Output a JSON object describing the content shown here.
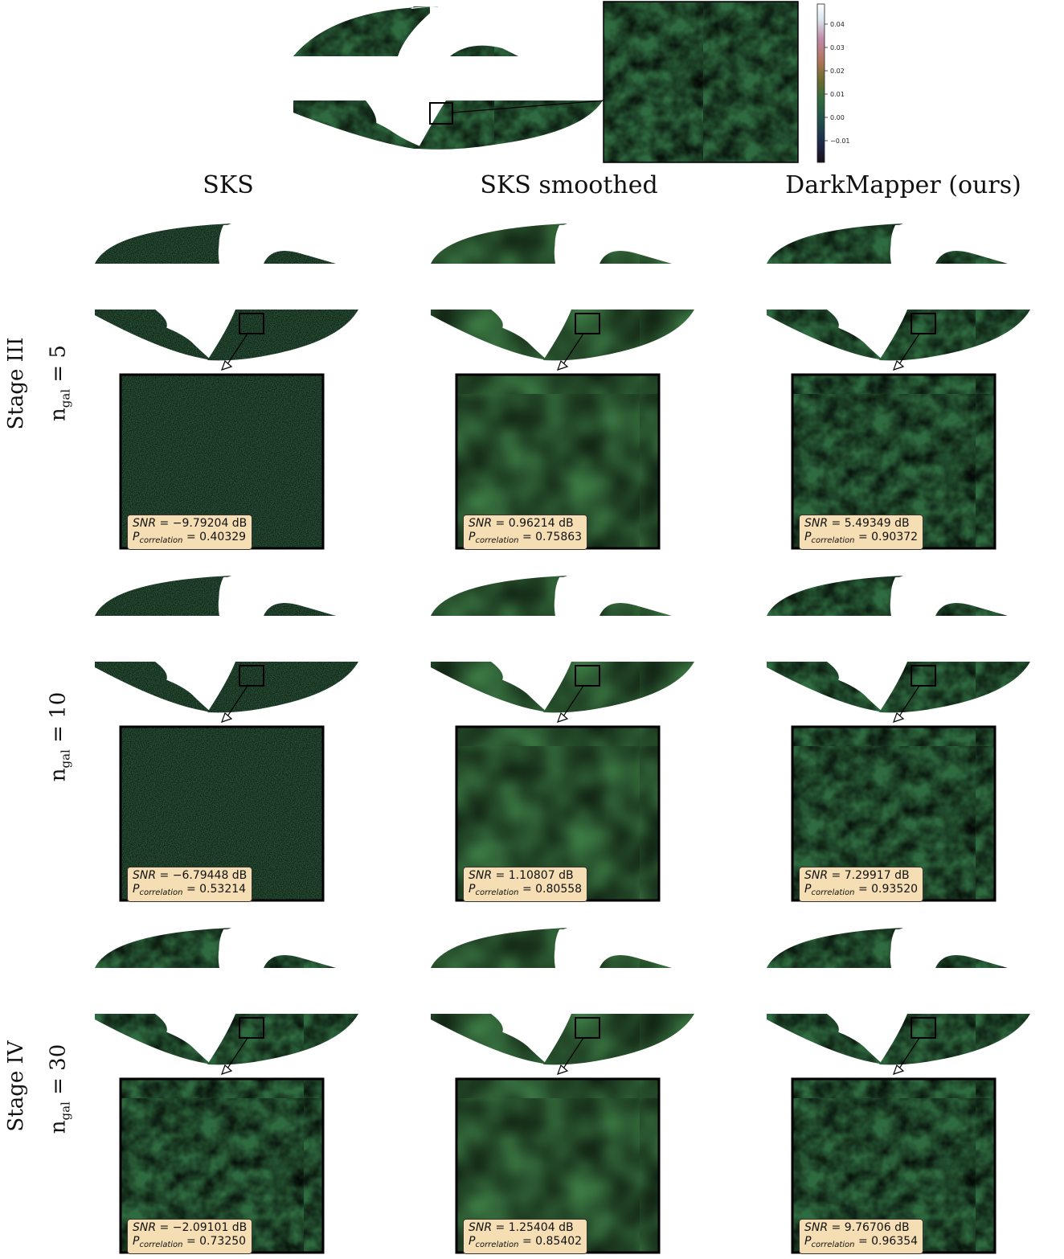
{
  "column_headers": [
    "SKS",
    "SKS smoothed",
    "DarkMapper (ours)"
  ],
  "row_labels": {
    "stage_iii": "Stage III",
    "stage_iv": "Stage IV",
    "ngal_5": "5",
    "ngal_10": "10",
    "ngal_30": "30",
    "ngal_symbol": "n",
    "ngal_sub": "gal"
  },
  "colorbar": {
    "ticks": [
      "0.04",
      "0.03",
      "0.02",
      "0.01",
      "0.00",
      "−0.01"
    ],
    "colormap": [
      "#1a0f1a",
      "#1d2a4a",
      "#1f4d4d",
      "#2f6b3d",
      "#6b6b2e",
      "#b0755a",
      "#c08aa8",
      "#d9e6ee",
      "#ffffff"
    ]
  },
  "metrics": {
    "snr_label": "SNR",
    "corr_label": "P",
    "corr_sub": "correlation",
    "rows": [
      [
        {
          "snr": "−9.79204 dB",
          "corr": "0.40329"
        },
        {
          "snr": "0.96214 dB",
          "corr": "0.75863"
        },
        {
          "snr": "5.49349 dB",
          "corr": "0.90372"
        }
      ],
      [
        {
          "snr": "−6.79448 dB",
          "corr": "0.53214"
        },
        {
          "snr": "1.10807 dB",
          "corr": "0.80558"
        },
        {
          "snr": "7.29917 dB",
          "corr": "0.93520"
        }
      ],
      [
        {
          "snr": "−2.09101 dB",
          "corr": "0.73250"
        },
        {
          "snr": "1.25404 dB",
          "corr": "0.85402"
        },
        {
          "snr": "9.76706 dB",
          "corr": "0.96354"
        }
      ]
    ]
  }
}
